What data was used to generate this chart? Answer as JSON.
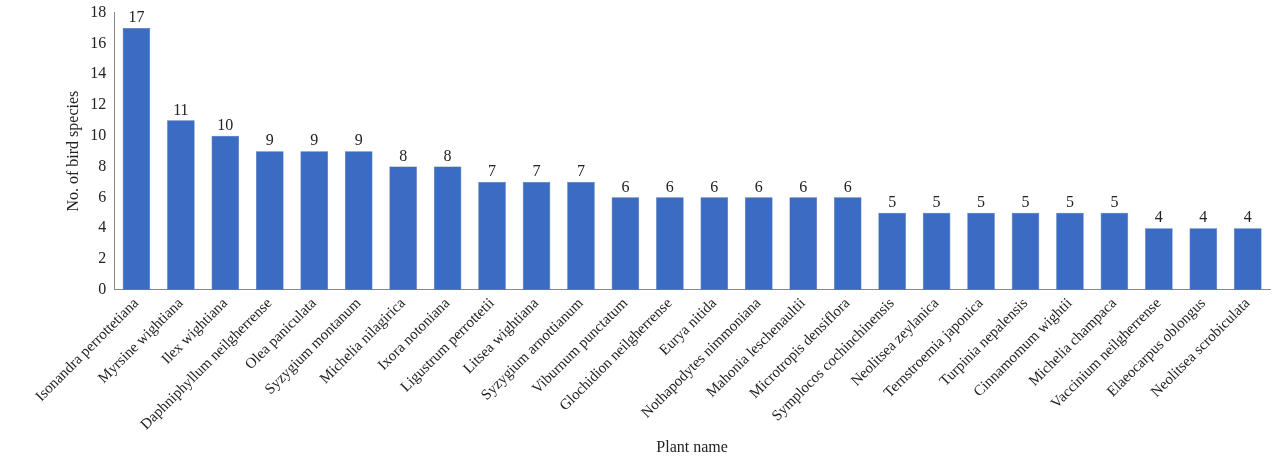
{
  "chart_data": {
    "type": "bar",
    "xlabel": "Plant name",
    "ylabel": "No. of bird species",
    "categories": [
      "Isonandra perrottetiana",
      "Myrsine wightiana",
      "Ilex wightiana",
      "Daphniphyllum neilgherrense",
      "Olea paniculata",
      "Syzygium montanum",
      "Michelia nilagirica",
      "Ixora notoniana",
      "Ligustrum perrottetii",
      "Litsea wightiana",
      "Syzygium arnottianum",
      "Viburnum punctatum",
      "Glochidion neilgherrense",
      "Eurya nitida",
      "Nothapodytes nimmoniana",
      "Mahonia leschenaultii",
      "Microtropis densiflora",
      "Symplocos cochinchinensis",
      "Neolitsea zeylanica",
      "Ternstroemia japonica",
      "Turpinia nepalensis",
      "Cinnamomum wightii",
      "Michelia champaca",
      "Vaccinium neilgherrense",
      "Elaeocarpus oblongus",
      "Neolitsea scrobiculata"
    ],
    "values": [
      17,
      11,
      10,
      9,
      9,
      9,
      8,
      8,
      7,
      7,
      7,
      6,
      6,
      6,
      6,
      6,
      6,
      5,
      5,
      5,
      5,
      5,
      5,
      4,
      4,
      4
    ],
    "color": "#3b6cc4",
    "ylim": [
      0,
      18
    ],
    "yticks": [
      0,
      2,
      4,
      6,
      8,
      10,
      12,
      14,
      16,
      18
    ],
    "grid": false,
    "legend": false,
    "data_labels": true
  }
}
